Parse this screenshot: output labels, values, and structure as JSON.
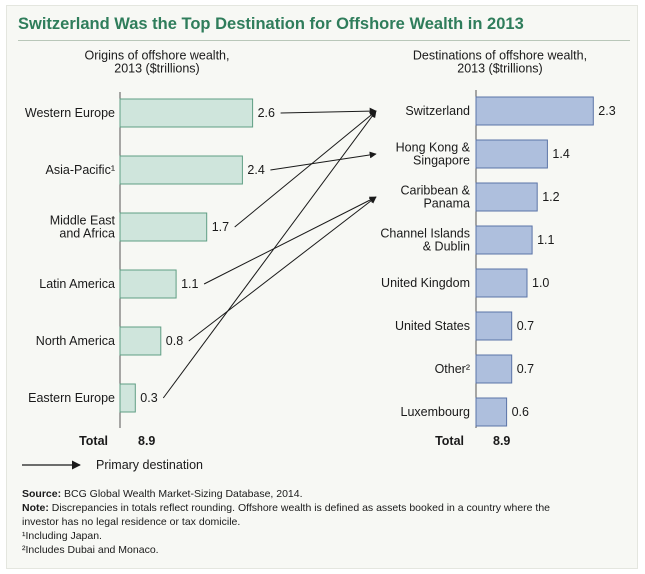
{
  "title": "Switzerland Was the Top Destination for Offshore Wealth in 2013",
  "colors": {
    "title": "#2f7d5b",
    "left_bar_fill": "#cfe5dc",
    "left_bar_stroke": "#5f9e84",
    "right_bar_fill": "#aebfdd",
    "right_bar_stroke": "#5b74a7",
    "arrow": "#1a1a1a"
  },
  "chart_data": [
    {
      "type": "bar",
      "orientation": "horizontal",
      "title": "Origins of offshore wealth,\n2013 ($trillions)",
      "categories": [
        "Western Europe",
        "Asia-Pacific¹",
        "Middle East\nand Africa",
        "Latin America",
        "North America",
        "Eastern Europe"
      ],
      "values": [
        2.6,
        2.4,
        1.7,
        1.1,
        0.8,
        0.3
      ],
      "value_labels": [
        "2.6",
        "2.4",
        "1.7",
        "1.1",
        "0.8",
        "0.3"
      ],
      "total_label": "Total",
      "total": "8.9"
    },
    {
      "type": "bar",
      "orientation": "horizontal",
      "title": "Destinations of offshore wealth,\n2013 ($trillions)",
      "categories": [
        "Switzerland",
        "Hong Kong &\nSingapore",
        "Caribbean &\nPanama",
        "Channel Islands\n& Dublin",
        "United Kingdom",
        "United States",
        "Other²",
        "Luxembourg"
      ],
      "values": [
        2.3,
        1.4,
        1.2,
        1.1,
        1.0,
        0.7,
        0.7,
        0.6
      ],
      "value_labels": [
        "2.3",
        "1.4",
        "1.2",
        "1.1",
        "1.0",
        "0.7",
        "0.7",
        "0.6"
      ],
      "total_label": "Total",
      "total": "8.9"
    }
  ],
  "flows": [
    {
      "from": "Western Europe",
      "to": "Switzerland"
    },
    {
      "from": "Asia-Pacific¹",
      "to": "Hong Kong &\nSingapore"
    },
    {
      "from": "Middle East\nand Africa",
      "to": "Switzerland"
    },
    {
      "from": "Latin America",
      "to": "Caribbean &\nPanama"
    },
    {
      "from": "North America",
      "to": "Caribbean &\nPanama"
    },
    {
      "from": "Eastern Europe",
      "to": "Switzerland"
    }
  ],
  "legend": {
    "label": "Primary destination"
  },
  "notes": {
    "source_label": "Source:",
    "source_text": "BCG Global Wealth Market-Sizing Database, 2014.",
    "note_label": "Note:",
    "note_line1": "Discrepancies in totals reflect rounding. Offshore wealth is defined as assets booked in a country where the",
    "note_line2": "investor has no legal residence or tax domicile.",
    "footnote1": "¹Including Japan.",
    "footnote2": "²Includes Dubai and Monaco."
  }
}
